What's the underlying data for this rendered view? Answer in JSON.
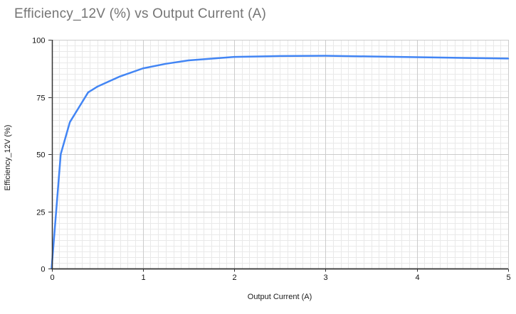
{
  "header": {
    "title": "Efficiency_12V (%) vs Output Current (A)",
    "title_color": "#757575"
  },
  "chart_data": {
    "type": "line",
    "title": "Efficiency_12V (%) vs Output Current (A)",
    "xlabel": "Output Current (A)",
    "ylabel": "Efficiency_12V (%)",
    "xlim": [
      0,
      5
    ],
    "ylim": [
      0,
      100
    ],
    "x_ticks": [
      0,
      1,
      2,
      3,
      4,
      5
    ],
    "y_ticks": [
      0,
      25,
      50,
      75,
      100
    ],
    "grid": {
      "minor": true,
      "x_minor_step": 0.0833333,
      "y_minor_step": 2.5,
      "minor_color": "#e9e9e9",
      "major_color": "#cccccc"
    },
    "axis_color": "#333333",
    "tick_label_color": "#111111",
    "legend_position": "none",
    "series": [
      {
        "name": "Efficiency_12V (%)",
        "color": "#4285f4",
        "points": [
          [
            0,
            0
          ],
          [
            0.05,
            25
          ],
          [
            0.1,
            50
          ],
          [
            0.2,
            64
          ],
          [
            0.3,
            70.5
          ],
          [
            0.4,
            77
          ],
          [
            0.5,
            79.5
          ],
          [
            0.75,
            84
          ],
          [
            1.0,
            87.5
          ],
          [
            1.25,
            89.5
          ],
          [
            1.5,
            91
          ],
          [
            2.0,
            92.5
          ],
          [
            2.5,
            92.9
          ],
          [
            3.0,
            93
          ],
          [
            3.5,
            92.7
          ],
          [
            4.0,
            92.4
          ],
          [
            4.5,
            92.1
          ],
          [
            5.0,
            91.8
          ]
        ]
      }
    ]
  }
}
